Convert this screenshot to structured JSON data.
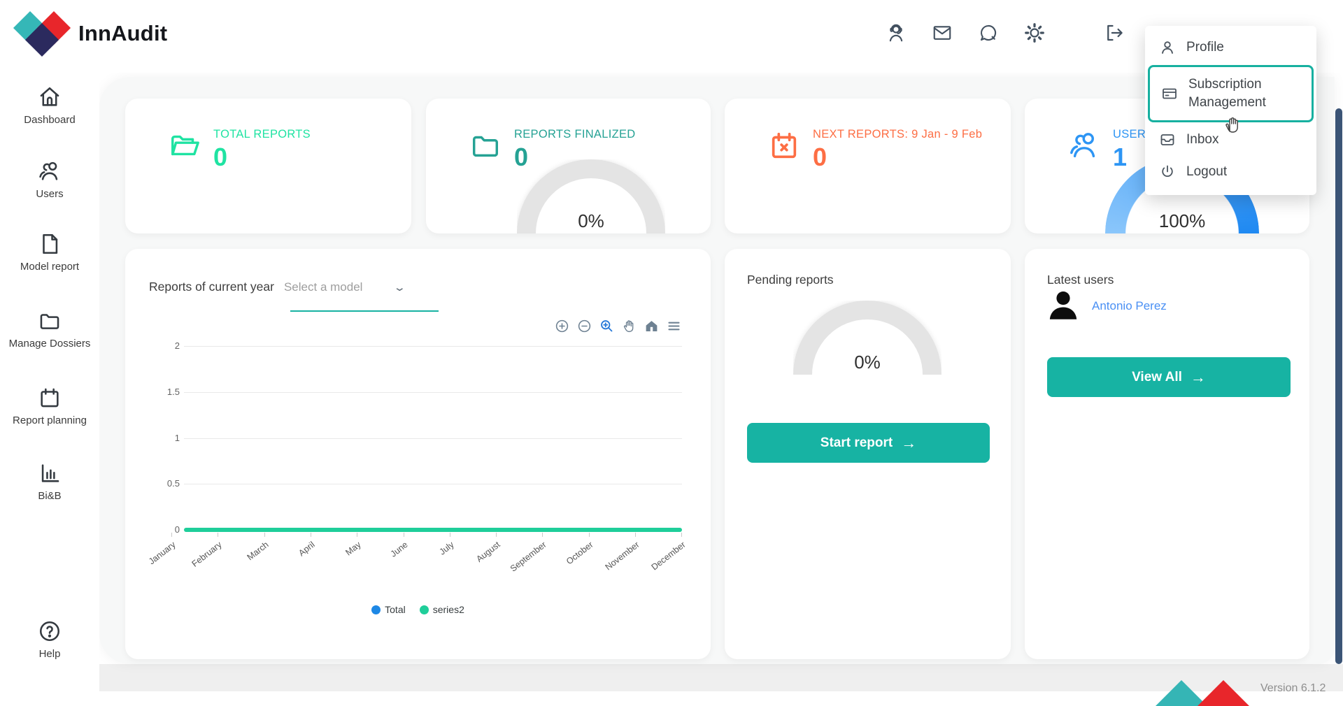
{
  "brand": {
    "name": "InnAudit"
  },
  "header": {
    "icons": [
      "support",
      "mail",
      "chat",
      "settings",
      "logout"
    ]
  },
  "user_menu": {
    "items": [
      {
        "label": "Profile",
        "icon": "person",
        "active": false
      },
      {
        "label": "Subscription Management",
        "icon": "subscription-card",
        "active": true
      },
      {
        "label": "Inbox",
        "icon": "inbox",
        "active": false
      },
      {
        "label": "Logout",
        "icon": "power",
        "active": false
      }
    ]
  },
  "sidebar": {
    "items": [
      {
        "label": "Dashboard",
        "icon": "home"
      },
      {
        "label": "Users",
        "icon": "users"
      },
      {
        "label": "Model report",
        "icon": "document"
      },
      {
        "label": "Manage Dossiers",
        "icon": "folder"
      },
      {
        "label": "Report planning",
        "icon": "calendar"
      },
      {
        "label": "Bi&B",
        "icon": "bar-chart"
      },
      {
        "label": "Help",
        "icon": "help"
      }
    ]
  },
  "stats": [
    {
      "title": "TOTAL REPORTS",
      "value": "0",
      "accent": "#1fe3a2",
      "icon": "folder-open"
    },
    {
      "title": "REPORTS FINALIZED",
      "value": "0",
      "accent": "#25a294",
      "icon": "folder",
      "gauge_percent": "0%",
      "gauge_color": "#e4e4e4"
    },
    {
      "title": "NEXT REPORTS: 9 Jan - 9 Feb",
      "value": "0",
      "accent": "#fd6e44",
      "icon": "calendar-x"
    },
    {
      "title": "USERS",
      "value": "1",
      "accent": "#2d95f4",
      "icon": "users-group",
      "gauge_percent": "100%",
      "gauge_color": "#2f90f1"
    }
  ],
  "chart_card": {
    "title": "Reports of current year",
    "select_placeholder": "Select a model",
    "toolbar": [
      "zoom-in",
      "zoom-out",
      "selection-zoom",
      "pan",
      "reset-home",
      "menu"
    ],
    "chart_data": {
      "type": "line",
      "categories": [
        "January",
        "February",
        "March",
        "April",
        "May",
        "June",
        "July",
        "August",
        "September",
        "October",
        "November",
        "December"
      ],
      "series": [
        {
          "name": "Total",
          "color": "#1e88e5",
          "values": [
            0,
            0,
            0,
            0,
            0,
            0,
            0,
            0,
            0,
            0,
            0,
            0
          ]
        },
        {
          "name": "series2",
          "color": "#1fce9a",
          "values": [
            0,
            0,
            0,
            0,
            0,
            0,
            0,
            0,
            0,
            0,
            0,
            0
          ]
        }
      ],
      "ylim": [
        0,
        2
      ],
      "yticks": [
        0,
        0.5,
        1,
        1.5,
        2
      ],
      "grid": true,
      "legend_position": "bottom"
    }
  },
  "pending_card": {
    "title": "Pending reports",
    "gauge_percent": "0%",
    "button_label": "Start report"
  },
  "latest_users_card": {
    "title": "Latest users",
    "users": [
      {
        "name": "Antonio Perez"
      }
    ],
    "button_label": "View All"
  },
  "footer": {
    "version": "Version 6.1.2"
  }
}
